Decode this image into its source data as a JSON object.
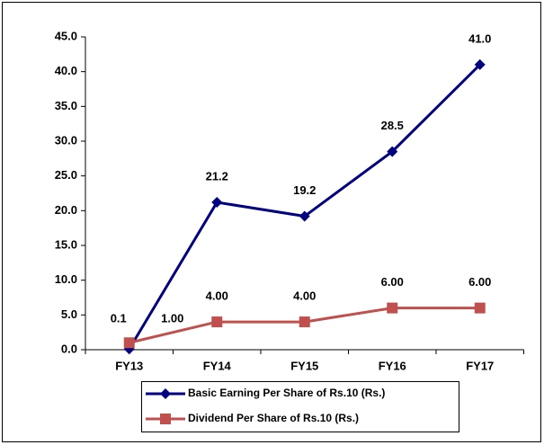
{
  "chart_data": {
    "type": "line",
    "categories": [
      "FY13",
      "FY14",
      "FY15",
      "FY16",
      "FY17"
    ],
    "series": [
      {
        "name": "Basic Earning Per Share of Rs.10 (Rs.)",
        "color": "#000080",
        "marker": "diamond",
        "values": [
          0.1,
          21.2,
          19.2,
          28.5,
          41.0
        ],
        "value_labels": [
          "0.1",
          "21.2",
          "19.2",
          "28.5",
          "41.0"
        ]
      },
      {
        "name": "Dividend Per Share of Rs.10 (Rs.)",
        "color": "#c0504d",
        "marker": "square",
        "values": [
          1,
          4,
          4,
          6,
          6
        ],
        "value_labels": [
          "1.00",
          "4.00",
          "4.00",
          "6.00",
          "6.00"
        ]
      }
    ],
    "ylim": [
      0,
      45
    ],
    "yticks": [
      {
        "value": 0,
        "label": "0.0"
      },
      {
        "value": 5,
        "label": "5.0"
      },
      {
        "value": 10,
        "label": "10.0"
      },
      {
        "value": 15,
        "label": "15.0"
      },
      {
        "value": 20,
        "label": "20.0"
      },
      {
        "value": 25,
        "label": "25.0"
      },
      {
        "value": 30,
        "label": "30.0"
      },
      {
        "value": 35,
        "label": "35.0"
      },
      {
        "value": 40,
        "label": "40.0"
      },
      {
        "value": 45,
        "label": "45.0"
      }
    ],
    "grid": false,
    "legend": "bottom"
  }
}
